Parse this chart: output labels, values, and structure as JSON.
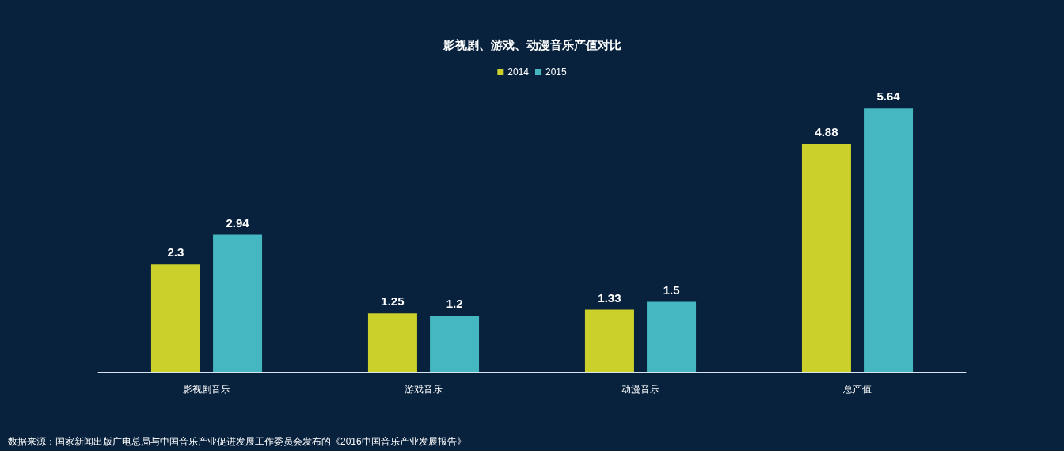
{
  "chart_data": {
    "type": "bar",
    "title": "影视剧、游戏、动漫音乐产值对比",
    "categories": [
      "影视剧音乐",
      "游戏音乐",
      "动漫音乐",
      "总产值"
    ],
    "series": [
      {
        "name": "2014",
        "color": "#cbd02a",
        "values": [
          2.3,
          1.25,
          1.33,
          4.88
        ]
      },
      {
        "name": "2015",
        "color": "#45b7c0",
        "values": [
          2.94,
          1.2,
          1.5,
          5.64
        ]
      }
    ],
    "data_labels": true,
    "legend": "top",
    "annotations": [
      "数据来源：国家新闻出版广电总局与中国音乐产业促进发展工作委员会发布的《2016中国音乐产业发展报告》"
    ]
  }
}
